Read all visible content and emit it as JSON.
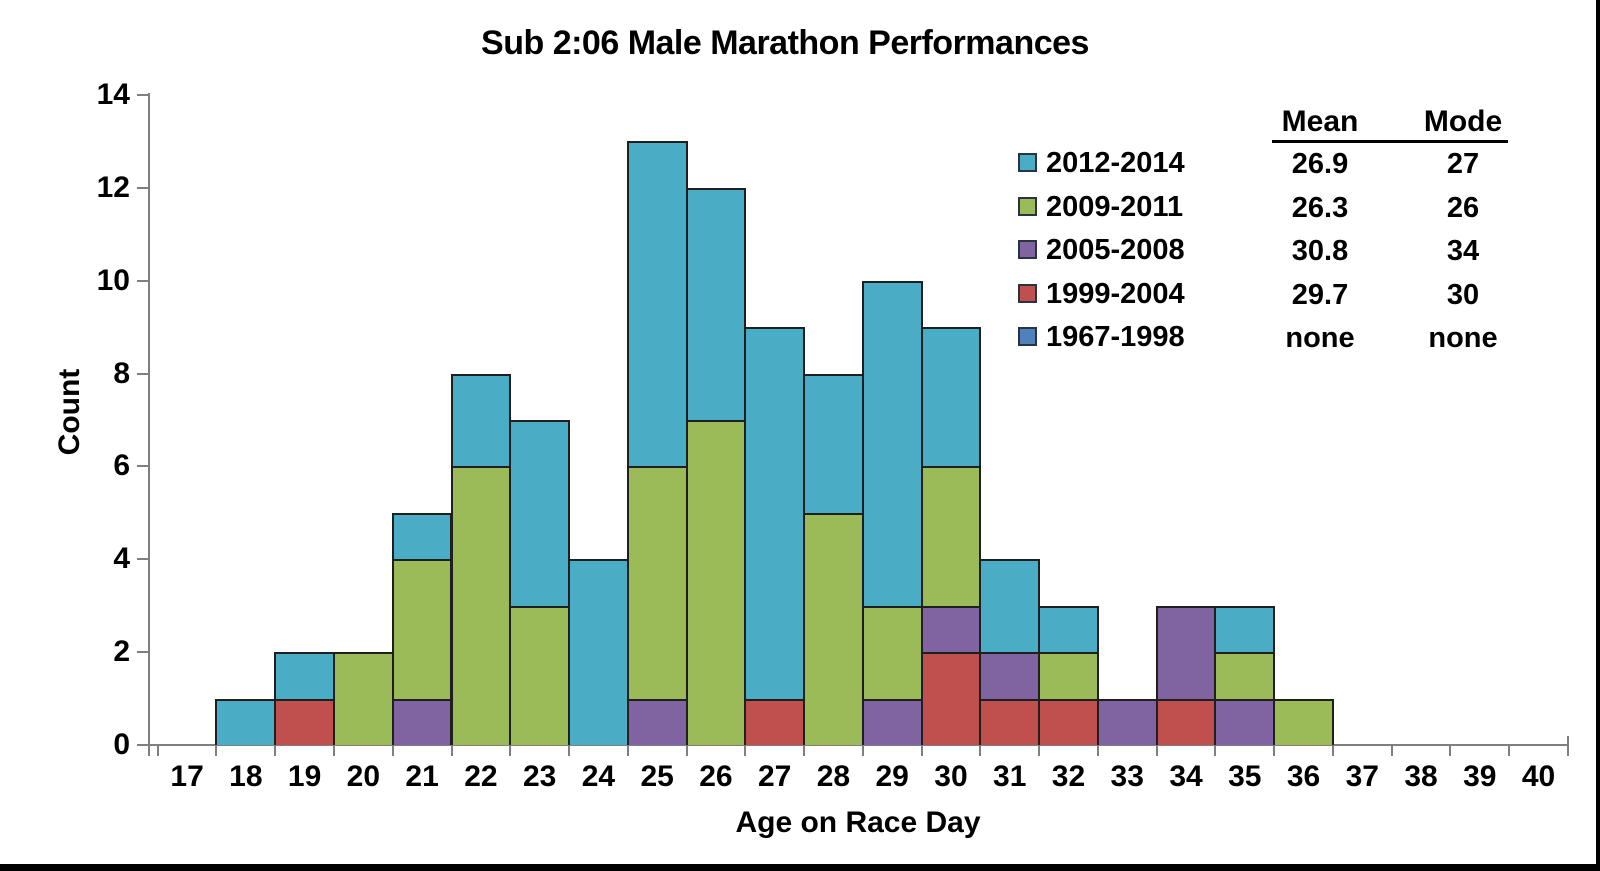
{
  "title": "Sub 2:06 Male Marathon Performances",
  "chart_data": {
    "type": "bar",
    "stacked": true,
    "title": "Sub 2:06 Male Marathon Performances",
    "xlabel": "Age on Race Day",
    "ylabel": "Count",
    "ylim": [
      0,
      14
    ],
    "grid": false,
    "legend_position": "upper right",
    "categories": [
      17,
      18,
      19,
      20,
      21,
      22,
      23,
      24,
      25,
      26,
      27,
      28,
      29,
      30,
      31,
      32,
      33,
      34,
      35,
      36,
      37,
      38,
      39,
      40
    ],
    "y_ticks": [
      0,
      2,
      4,
      6,
      8,
      10,
      12,
      14
    ],
    "stack_order": "bottom to top",
    "series": [
      {
        "name": "1967-1998",
        "color": "#4F81BD",
        "values": [
          0,
          0,
          0,
          0,
          0,
          0,
          0,
          0,
          0,
          0,
          0,
          0,
          0,
          0,
          0,
          0,
          0,
          0,
          0,
          0,
          0,
          0,
          0,
          0
        ]
      },
      {
        "name": "1999-2004",
        "color": "#C0504D",
        "values": [
          0,
          0,
          1,
          0,
          0,
          0,
          0,
          0,
          0,
          0,
          1,
          0,
          0,
          2,
          1,
          1,
          0,
          1,
          0,
          0,
          0,
          0,
          0,
          0
        ]
      },
      {
        "name": "2005-2008",
        "color": "#8064A2",
        "values": [
          0,
          0,
          0,
          0,
          1,
          0,
          0,
          0,
          1,
          0,
          0,
          0,
          1,
          1,
          1,
          0,
          1,
          2,
          1,
          0,
          0,
          0,
          0,
          0
        ]
      },
      {
        "name": "2009-2011",
        "color": "#9BBB59",
        "values": [
          0,
          0,
          0,
          2,
          3,
          6,
          3,
          0,
          5,
          7,
          0,
          5,
          2,
          3,
          0,
          1,
          0,
          0,
          1,
          1,
          0,
          0,
          0,
          0
        ]
      },
      {
        "name": "2012-2014",
        "color": "#4BACC6",
        "values": [
          0,
          1,
          1,
          0,
          1,
          2,
          4,
          4,
          7,
          5,
          8,
          3,
          7,
          3,
          2,
          1,
          0,
          0,
          1,
          0,
          0,
          0,
          0,
          0
        ]
      }
    ],
    "totals_by_age": [
      0,
      1,
      2,
      2,
      5,
      8,
      7,
      4,
      13,
      12,
      9,
      8,
      10,
      9,
      4,
      3,
      1,
      3,
      3,
      1,
      0,
      0,
      0,
      0
    ]
  },
  "legend": {
    "header_mean": "Mean",
    "header_mode": "Mode",
    "entries": [
      {
        "label": "2012-2014",
        "color": "#4BACC6",
        "mean": "26.9",
        "mode": "27"
      },
      {
        "label": "2009-2011",
        "color": "#9BBB59",
        "mean": "26.3",
        "mode": "26"
      },
      {
        "label": "2005-2008",
        "color": "#8064A2",
        "mean": "30.8",
        "mode": "34"
      },
      {
        "label": "1999-2004",
        "color": "#C0504D",
        "mean": "29.7",
        "mode": "30"
      },
      {
        "label": "1967-1998",
        "color": "#4F81BD",
        "mean": "none",
        "mode": "none"
      }
    ]
  },
  "axis": {
    "ylabel": "Count",
    "xlabel": "Age on Race Day",
    "axis_color": "#7f7f7f",
    "bar_outline_color": "#1f1f1f"
  }
}
